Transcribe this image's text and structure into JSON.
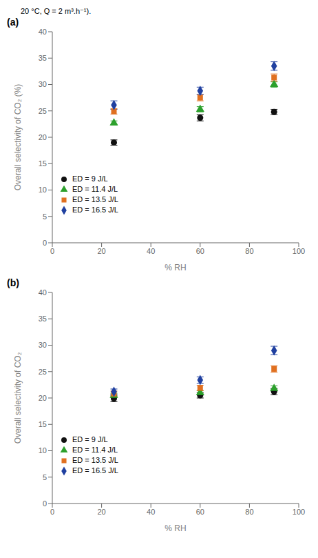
{
  "chart_data": [
    {
      "type": "scatter",
      "title": "(a)",
      "annotations": [
        "20 °C, Q = 2 m³.h⁻¹)."
      ],
      "x_label": "% RH",
      "y_label": "Overall selectivity of CO₂ (%)",
      "x": [
        25,
        60,
        90
      ],
      "xlim": [
        0,
        100
      ],
      "ylim": [
        0,
        40
      ],
      "xticks": [
        0,
        20,
        40,
        60,
        80,
        100
      ],
      "yticks": [
        0,
        5,
        10,
        15,
        20,
        25,
        30,
        35,
        40
      ],
      "grid": false,
      "legend": "lower left",
      "series": [
        {
          "name": "ED = 9 J/L",
          "color": "#111111",
          "marker": "circle",
          "values": [
            19.0,
            23.7,
            24.8
          ],
          "yerr": [
            0.5,
            0.6,
            0.5
          ]
        },
        {
          "name": "ED = 11.4 J/L",
          "color": "#2ca02c",
          "marker": "triangle",
          "values": [
            22.7,
            25.3,
            30.0
          ],
          "yerr": [
            0.4,
            0.5,
            0.5
          ]
        },
        {
          "name": "ED = 13.5 J/L",
          "color": "#e07020",
          "marker": "square",
          "values": [
            24.9,
            27.5,
            31.3
          ],
          "yerr": [
            0.5,
            0.6,
            0.7
          ]
        },
        {
          "name": "ED = 16.5 J/L",
          "color": "#2040a0",
          "marker": "diamond",
          "values": [
            26.1,
            28.8,
            33.5
          ],
          "yerr": [
            0.8,
            0.7,
            0.8
          ]
        }
      ]
    },
    {
      "type": "scatter",
      "title": "(b)",
      "x_label": "% RH",
      "y_label": "Overall selectivity of CO₂",
      "x": [
        25,
        60,
        90
      ],
      "xlim": [
        0,
        100
      ],
      "ylim": [
        0,
        40
      ],
      "xticks": [
        0,
        20,
        40,
        60,
        80,
        100
      ],
      "yticks": [
        0,
        5,
        10,
        15,
        20,
        25,
        30,
        35,
        40
      ],
      "grid": false,
      "legend": "lower left",
      "series": [
        {
          "name": "ED = 9 J/L",
          "color": "#111111",
          "marker": "circle",
          "values": [
            19.9,
            20.5,
            21.2
          ],
          "yerr": [
            0.6,
            0.5,
            0.6
          ]
        },
        {
          "name": "ED = 11.4 J/L",
          "color": "#2ca02c",
          "marker": "triangle",
          "values": [
            20.5,
            21.0,
            21.8
          ],
          "yerr": [
            0.4,
            0.4,
            0.5
          ]
        },
        {
          "name": "ED = 13.5 J/L",
          "color": "#e07020",
          "marker": "square",
          "values": [
            20.8,
            21.9,
            25.5
          ],
          "yerr": [
            0.5,
            0.5,
            0.6
          ]
        },
        {
          "name": "ED = 16.5 J/L",
          "color": "#2040a0",
          "marker": "diamond",
          "values": [
            21.2,
            23.4,
            29.0
          ],
          "yerr": [
            0.5,
            0.6,
            0.8
          ]
        }
      ]
    }
  ]
}
